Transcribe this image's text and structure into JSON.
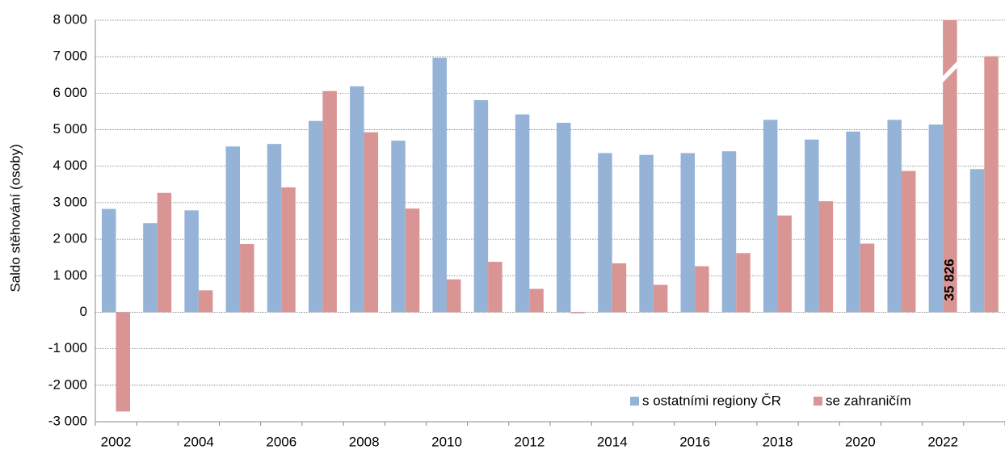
{
  "chart_data": {
    "type": "bar",
    "y_label": "Saldo stěhování (osoby)",
    "categories": [
      "2002",
      null,
      "2004",
      null,
      "2006",
      null,
      "2008",
      null,
      "2010",
      null,
      "2012",
      null,
      "2014",
      null,
      "2016",
      null,
      "2018",
      null,
      "2020",
      null,
      "2022",
      null
    ],
    "series": [
      {
        "name": "s ostatními regiony ČR",
        "color": "#95b3d7",
        "values": [
          2830,
          2440,
          2790,
          4540,
          4610,
          5240,
          6190,
          4700,
          6970,
          5810,
          5420,
          5190,
          4360,
          4310,
          4360,
          4410,
          5270,
          4730,
          4950,
          5270,
          5140,
          3920
        ]
      },
      {
        "name": "se zahraničím",
        "color": "#d99594",
        "values": [
          -2720,
          3270,
          600,
          1870,
          3420,
          6060,
          4930,
          2840,
          900,
          1380,
          640,
          -30,
          1340,
          750,
          1260,
          1620,
          2650,
          3040,
          1880,
          3870,
          35826,
          7010
        ],
        "value_labels": [
          null,
          null,
          null,
          null,
          null,
          null,
          null,
          null,
          null,
          null,
          null,
          null,
          null,
          null,
          null,
          null,
          null,
          null,
          null,
          null,
          "35 826",
          null
        ]
      }
    ],
    "ylim": [
      -3000,
      8000
    ],
    "yticks": [
      {
        "value": -3000,
        "label": "-3 000"
      },
      {
        "value": -2000,
        "label": "-2 000"
      },
      {
        "value": -1000,
        "label": "-1 000"
      },
      0,
      {
        "value": 1000,
        "label": "1 000"
      },
      {
        "value": 2000,
        "label": "2 000"
      },
      {
        "value": 3000,
        "label": "3 000"
      },
      {
        "value": 4000,
        "label": "4 000"
      },
      {
        "value": 5000,
        "label": "5 000"
      },
      {
        "value": 6000,
        "label": "6 000"
      },
      {
        "value": 7000,
        "label": "7 000"
      },
      {
        "value": 8000,
        "label": "8 000"
      }
    ],
    "grid": true,
    "legend": "bottom-right"
  }
}
